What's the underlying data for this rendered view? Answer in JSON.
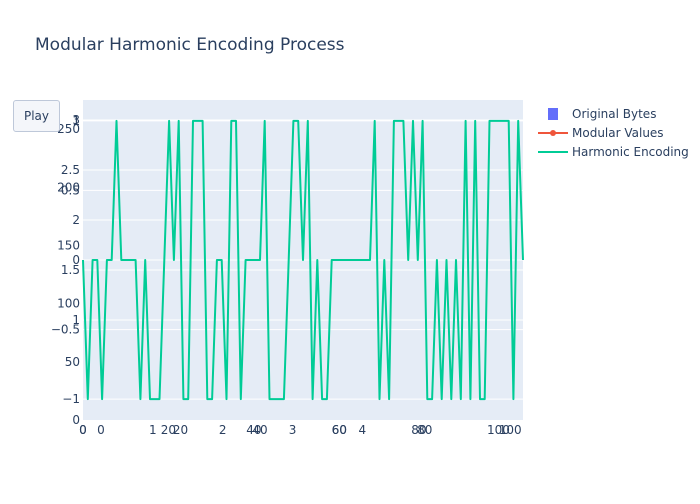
{
  "chart_title": "Modular Harmonic Encoding Process",
  "controls": {
    "play_label": "Play"
  },
  "colors": {
    "original_bytes": "#636efa",
    "modular_values": "#ef553b",
    "harmonic_encoding": "#00cc96",
    "plot_bg": "#e5ecf6",
    "grid": "#ffffff",
    "text": "#2a3f5f"
  },
  "chart_data": {
    "type": "line",
    "title": "Modular Harmonic Encoding Process",
    "legend_placement": "top-right",
    "grid": true,
    "series": [
      {
        "name": "Original Bytes",
        "kind": "bar",
        "values": []
      },
      {
        "name": "Modular Values",
        "kind": "line+markers",
        "values": []
      },
      {
        "name": "Harmonic Encoding",
        "kind": "line",
        "values": [
          0,
          -1,
          0,
          0,
          -1,
          0,
          0,
          1,
          0,
          0,
          0,
          0,
          -1,
          0,
          -1,
          -1,
          -1,
          0,
          1,
          0,
          1,
          -1,
          -1,
          1,
          1,
          1,
          -1,
          -1,
          0,
          0,
          -1,
          1,
          1,
          -1,
          0,
          0,
          0,
          0,
          1,
          -1,
          -1,
          -1,
          -1,
          0,
          1,
          1,
          0,
          1,
          -1,
          0,
          -1,
          -1,
          0,
          0,
          0,
          0,
          0,
          0,
          0,
          0,
          0,
          1,
          -1,
          0,
          -1,
          1,
          1,
          1,
          0,
          1,
          0,
          1,
          -1,
          -1,
          0,
          -1,
          0,
          -1,
          0,
          -1,
          1,
          -1,
          1,
          -1,
          -1,
          1,
          1,
          1,
          1,
          1,
          -1,
          1,
          0
        ]
      }
    ],
    "axes": [
      {
        "id": "y1",
        "range": [
          0,
          275
        ],
        "ticks": [
          0,
          50,
          100,
          150,
          200,
          250
        ]
      },
      {
        "id": "y2",
        "range": [
          0,
          3.2
        ],
        "ticks": [
          1,
          1.5,
          2,
          2.5,
          3
        ]
      },
      {
        "id": "y3",
        "range": [
          -1.15,
          1.15
        ],
        "ticks": [
          -1,
          -0.5,
          0,
          0.5,
          1
        ]
      },
      {
        "id": "x1",
        "ticks": [
          "0",
          "20",
          "40",
          "60",
          "80",
          "100"
        ]
      },
      {
        "id": "x2",
        "ticks": [
          "0",
          "1",
          "2",
          "3",
          "4"
        ]
      },
      {
        "id": "x3",
        "ticks": [
          "0",
          "20",
          "40",
          "60",
          "80",
          "100"
        ]
      }
    ]
  },
  "tick_text": {
    "y1": [
      "0",
      "50",
      "100",
      "150",
      "200",
      "250"
    ],
    "y2": [
      "1",
      "1.5",
      "2",
      "2.5",
      "3"
    ],
    "y3": [
      "−1",
      "−0.5",
      "0",
      "0.5",
      "1"
    ],
    "x1": [
      "0",
      "20",
      "40",
      "60",
      "80",
      "100"
    ],
    "x2": [
      "0",
      "1",
      "2",
      "3",
      "4"
    ],
    "x3": [
      "0",
      "20",
      "40",
      "60",
      "80",
      "100"
    ]
  }
}
